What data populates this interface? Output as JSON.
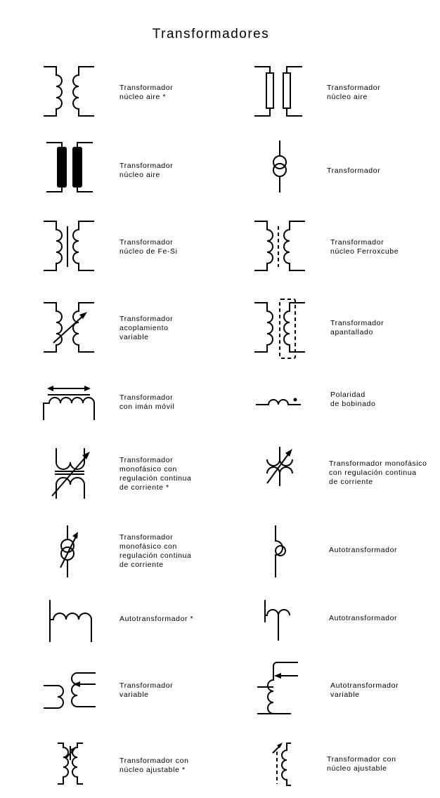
{
  "title": "Transformadores",
  "symbols": [
    {
      "icon": "transformer-air-core-icon",
      "label": [
        "Transformador",
        "núcleo aire *"
      ]
    },
    {
      "icon": "transformer-air-core-outline-icon",
      "label": [
        "Transformador",
        "núcleo aire"
      ]
    },
    {
      "icon": "transformer-air-core-solid-icon",
      "label": [
        "Transformador",
        "núcleo aire"
      ]
    },
    {
      "icon": "transformer-circles-icon",
      "label": [
        "Transformador"
      ]
    },
    {
      "icon": "transformer-fesi-core-icon",
      "label": [
        "Transformador",
        "núcleo de Fe-Si"
      ]
    },
    {
      "icon": "transformer-ferroxcube-core-icon",
      "label": [
        "Transformador",
        "núcleo Ferroxcube"
      ]
    },
    {
      "icon": "transformer-variable-coupling-icon",
      "label": [
        "Transformador",
        "acoplamiento",
        "variable"
      ]
    },
    {
      "icon": "transformer-shielded-icon",
      "label": [
        "Transformador",
        "apantallado"
      ]
    },
    {
      "icon": "transformer-moving-magnet-icon",
      "label": [
        "Transformador",
        "con imán móvil"
      ]
    },
    {
      "icon": "winding-polarity-icon",
      "label": [
        "Polaridad",
        "de bobinado"
      ]
    },
    {
      "icon": "single-phase-continuous-regulation-star-icon",
      "label": [
        "Transformador",
        "monofásico con",
        "regulación continua",
        "de corriente *"
      ]
    },
    {
      "icon": "single-phase-continuous-regulation-icon",
      "label": [
        "Transformador monofásico",
        "con regulación continua",
        "de corriente"
      ]
    },
    {
      "icon": "single-phase-regulation-circles-icon",
      "label": [
        "Transformador",
        "monofásico con",
        "regulación continua",
        "de corriente"
      ]
    },
    {
      "icon": "autotransformer-circle-icon",
      "label": [
        "Autotransformador"
      ]
    },
    {
      "icon": "autotransformer-star-icon",
      "label": [
        "Autotransformador *"
      ]
    },
    {
      "icon": "autotransformer-icon",
      "label": [
        "Autotransformador"
      ]
    },
    {
      "icon": "variable-transformer-icon",
      "label": [
        "Transformador",
        "variable"
      ]
    },
    {
      "icon": "variable-autotransformer-icon",
      "label": [
        "Autotransformador",
        "variable"
      ]
    },
    {
      "icon": "adjustable-core-transformer-star-icon",
      "label": [
        "Transformador con",
        "núcleo ajustable *"
      ]
    },
    {
      "icon": "adjustable-core-transformer-icon",
      "label": [
        "Transformador con",
        "núcleo ajustable"
      ]
    }
  ]
}
